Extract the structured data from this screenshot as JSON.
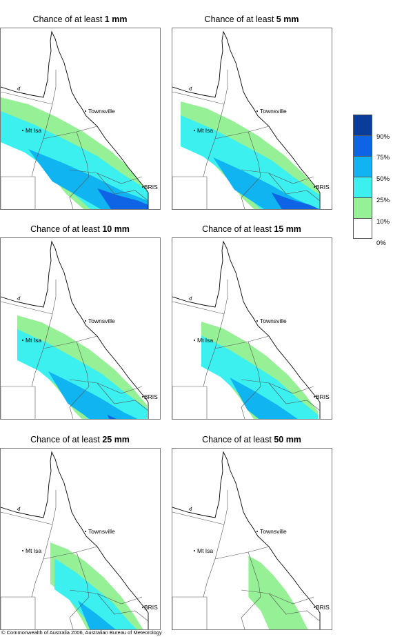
{
  "panels": [
    {
      "prefix": "Chance of at least ",
      "amount": "1 mm",
      "level": 1
    },
    {
      "prefix": "Chance of at least ",
      "amount": "5 mm",
      "level": 2
    },
    {
      "prefix": "Chance of at least ",
      "amount": "10 mm",
      "level": 3
    },
    {
      "prefix": "Chance of at least ",
      "amount": "15 mm",
      "level": 4
    },
    {
      "prefix": "Chance of at least ",
      "amount": "25 mm",
      "level": 5
    },
    {
      "prefix": "Chance of at least ",
      "amount": "50 mm",
      "level": 6
    }
  ],
  "places": {
    "townsville": "Townsville",
    "mt_isa": "Mt Isa",
    "bris": "BRIS"
  },
  "legend": {
    "labels": [
      "90%",
      "75%",
      "50%",
      "25%",
      "10%",
      "0%"
    ],
    "colors": [
      "#0a3c9a",
      "#0f64e6",
      "#0fb4f0",
      "#3cf0f0",
      "#96f096",
      "#ffffff"
    ]
  },
  "copyright": "© Commonwealth of Australia 2006, Australian Bureau of Meteorology"
}
